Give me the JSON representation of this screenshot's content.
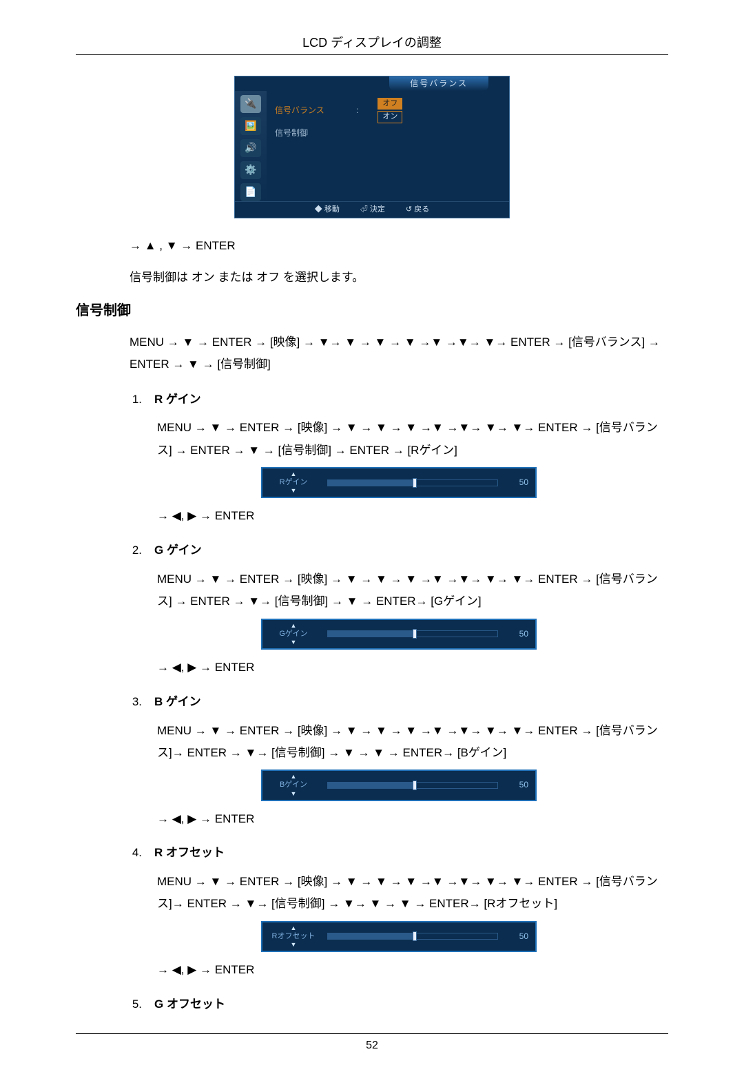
{
  "page_header": "LCD ディスプレイの調整",
  "page_number": "52",
  "osd_menu": {
    "title": "信号バランス",
    "items": [
      {
        "label": "信号バランス",
        "highlight": true
      },
      {
        "label": "信号制御",
        "highlight": false
      }
    ],
    "options": {
      "off": "オフ",
      "on": "オン"
    },
    "footer": {
      "move": "◆ 移動",
      "enter": "⏎ 決定",
      "return": "↺ 戻る"
    },
    "colors": {
      "background": "#0b2d4f",
      "border": "#1e70b8",
      "text": "#cfe0f0",
      "muted_text": "#9fb8d0",
      "highlight": "#d08020"
    }
  },
  "intro_nav": "→ ▲ , ▼ → ENTER",
  "intro_text": "信号制御は オン または オフ を選択します。",
  "section_heading": "信号制御",
  "section_path": "MENU → ▼ → ENTER → [映像] → ▼→ ▼ → ▼ → ▼ →▼ →▼→ ▼→ ENTER → [信号バランス] → ENTER → ▼ → [信号制御]",
  "slider_common": {
    "value": 50,
    "min": 0,
    "max": 100,
    "track_color": "#2a5a8a",
    "thumb_color": "#e8f0ff",
    "label_color": "#7fb0e0",
    "value_color": "#8fc0ea",
    "background": "#0b2d4f",
    "border": "#1e70b8"
  },
  "items": [
    {
      "num": "1.",
      "title": "R ゲイン",
      "path": "MENU → ▼ → ENTER → [映像] → ▼ → ▼ → ▼ →▼ →▼→ ▼→ ▼→ ENTER → [信号バランス] → ENTER → ▼ → [信号制御] → ENTER → [Rゲイン]",
      "slider_label": "Rゲイン",
      "after": "→ ◀, ▶ → ENTER"
    },
    {
      "num": "2.",
      "title": "G ゲイン",
      "path": "MENU → ▼ → ENTER → [映像] → ▼ → ▼ → ▼ →▼ →▼→ ▼→ ▼→ ENTER → [信号バランス] → ENTER → ▼→ [信号制御] → ▼ → ENTER→ [Gゲイン]",
      "slider_label": "Gゲイン",
      "after": "→ ◀, ▶ → ENTER"
    },
    {
      "num": "3.",
      "title": "B ゲイン",
      "path": "MENU → ▼ → ENTER → [映像] → ▼ → ▼ → ▼ →▼ →▼→ ▼→ ▼→ ENTER → [信号バランス]→ ENTER → ▼→ [信号制御] → ▼ → ▼ → ENTER→ [Bゲイン]",
      "slider_label": "Bゲイン",
      "after": "→ ◀, ▶ → ENTER"
    },
    {
      "num": "4.",
      "title": "R オフセット",
      "path": "MENU → ▼ → ENTER → [映像] → ▼ → ▼ → ▼ →▼ →▼→ ▼→ ▼→ ENTER → [信号バランス]→ ENTER → ▼→ [信号制御] → ▼→ ▼ → ▼ → ENTER→ [Rオフセット]",
      "slider_label": "Rオフセット",
      "after": "→ ◀, ▶ → ENTER"
    },
    {
      "num": "5.",
      "title": "G オフセット",
      "path": "",
      "slider_label": "",
      "after": ""
    }
  ]
}
